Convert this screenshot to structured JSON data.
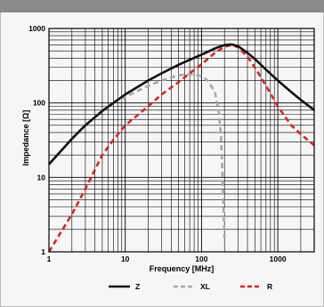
{
  "chart_data": {
    "type": "line",
    "title": "",
    "xlabel": "Frequency [MHz]",
    "ylabel": "Impedance [Ω]",
    "xscale": "log",
    "yscale": "log",
    "xlim": [
      1,
      3000
    ],
    "ylim": [
      1,
      1000
    ],
    "grid": true,
    "legend_position": "bottom",
    "x_tick_labels": [
      "1",
      "10",
      "100",
      "1000"
    ],
    "y_tick_labels": [
      "1",
      "10",
      "100",
      "1000"
    ],
    "series": [
      {
        "name": "Z",
        "color": "#111111",
        "style": "solid",
        "x": [
          1,
          2,
          3,
          5,
          7,
          10,
          20,
          30,
          50,
          70,
          100,
          150,
          200,
          250,
          300,
          400,
          500,
          700,
          1000,
          1500,
          2000,
          3000
        ],
        "y": [
          15,
          33,
          50,
          78,
          100,
          130,
          200,
          250,
          325,
          380,
          445,
          540,
          600,
          610,
          580,
          470,
          390,
          280,
          200,
          140,
          110,
          80
        ]
      },
      {
        "name": "XL",
        "color": "#a8a8a8",
        "style": "dashed",
        "x": [
          1,
          2,
          3,
          5,
          7,
          10,
          20,
          30,
          50,
          70,
          100,
          120,
          150,
          170,
          180,
          190,
          200
        ],
        "y": [
          15,
          33,
          50,
          78,
          100,
          120,
          170,
          200,
          235,
          245,
          230,
          200,
          140,
          70,
          35,
          8,
          1.5
        ]
      },
      {
        "name": "R",
        "color": "#e02020",
        "style": "dashed",
        "x": [
          1,
          2,
          3,
          5,
          7,
          10,
          20,
          30,
          50,
          70,
          100,
          150,
          200,
          250,
          300,
          400,
          500,
          700,
          1000,
          1500,
          2000,
          3000
        ],
        "y": [
          1,
          3.2,
          7,
          20,
          32,
          50,
          90,
          130,
          190,
          250,
          330,
          470,
          570,
          600,
          560,
          420,
          300,
          170,
          90,
          50,
          38,
          27
        ]
      }
    ]
  }
}
